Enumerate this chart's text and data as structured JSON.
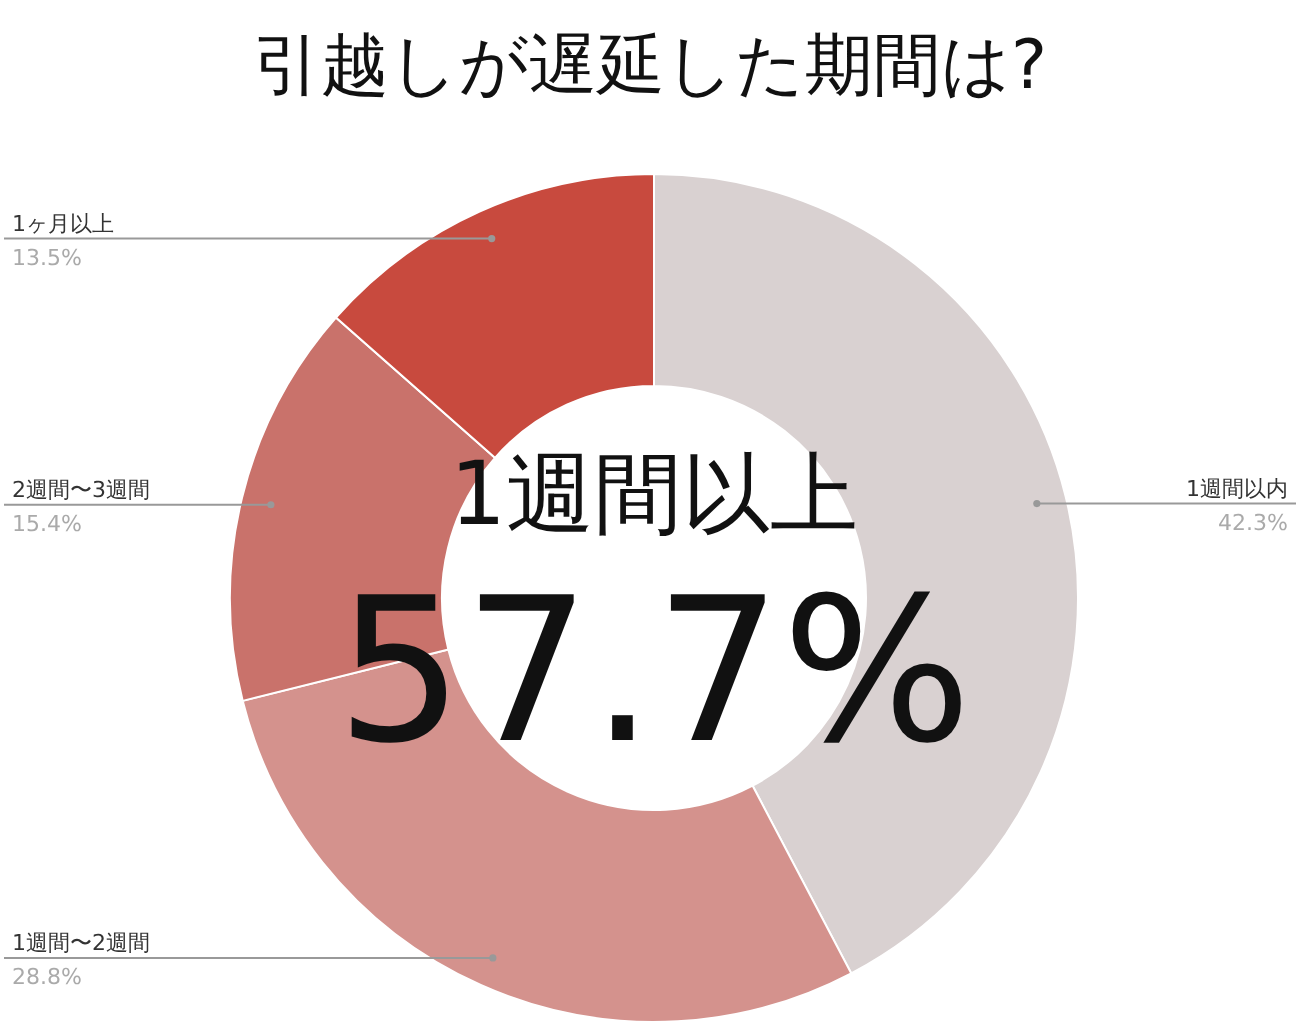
{
  "chart_data": {
    "type": "donut",
    "title": "引越しが遅延した期間は?",
    "categories": [
      "1週間以内",
      "1週間〜2週間",
      "2週間〜3週間",
      "1ヶ月以上"
    ],
    "values": [
      42.3,
      28.8,
      15.4,
      13.5
    ],
    "value_labels": [
      "42.3%",
      "28.8%",
      "15.4%",
      "13.5%"
    ],
    "colors": [
      "#d9d1d1",
      "#d4928d",
      "#c9726b",
      "#c84a3e"
    ],
    "annotations": [
      "1週間以上",
      "57.7%"
    ],
    "legend": false
  }
}
